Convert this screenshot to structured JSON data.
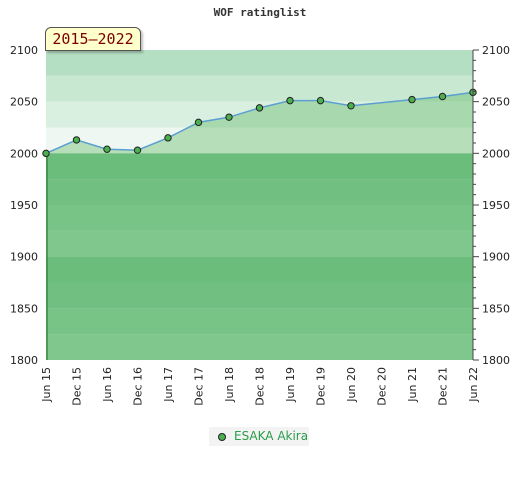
{
  "chart_data": {
    "type": "line",
    "title": "WOF ratinglist",
    "badge": "2015–2022",
    "categories": [
      "Jun 15",
      "Dec 15",
      "Jun 16",
      "Dec 16",
      "Jun 17",
      "Dec 17",
      "Jun 18",
      "Dec 18",
      "Jun 19",
      "Dec 19",
      "Jun 20",
      "Dec 20",
      "Jun 21",
      "Dec 21",
      "Jun 22"
    ],
    "points": [
      {
        "x": "Jun 15",
        "y": 2000
      },
      {
        "x": "Dec 15",
        "y": 2013
      },
      {
        "x": "Jun 16",
        "y": 2004
      },
      {
        "x": "Dec 16",
        "y": 2003
      },
      {
        "x": "Jun 17",
        "y": 2015
      },
      {
        "x": "Dec 17",
        "y": 2030
      },
      {
        "x": "Jun 18",
        "y": 2035
      },
      {
        "x": "Dec 18",
        "y": 2044
      },
      {
        "x": "Jun 19",
        "y": 2051
      },
      {
        "x": "Dec 19",
        "y": 2051
      },
      {
        "x": "Jun 20",
        "y": 2046
      },
      {
        "x": "Jun 21",
        "y": 2052
      },
      {
        "x": "Dec 21",
        "y": 2055
      },
      {
        "x": "Jun 22",
        "y": 2059
      }
    ],
    "series": [
      {
        "name": "ESAKA Akira",
        "color": "#4caf50"
      }
    ],
    "ylim": [
      1800,
      2100
    ],
    "yticks": [
      1800,
      1850,
      1900,
      1950,
      2000,
      2050,
      2100
    ],
    "grid": true,
    "legend_position": "bottom"
  }
}
